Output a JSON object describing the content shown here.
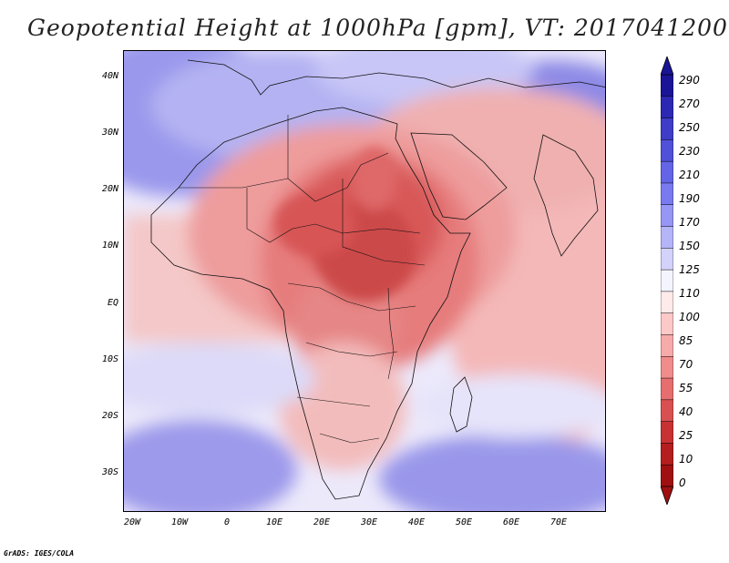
{
  "title": "Geopotential Height at 1000hPa [gpm], VT: 2017041200",
  "credit": "GrADS: IGES/COLA",
  "map": {
    "variable": "Geopotential Height",
    "level": "1000hPa",
    "units": "gpm",
    "valid_time": "2017041200",
    "region": "Africa, Arabian Peninsula and Indian Ocean",
    "lat_ticks": [
      "40N",
      "30N",
      "20N",
      "10N",
      "EQ",
      "10S",
      "20S",
      "30S"
    ],
    "lon_ticks": [
      "20W",
      "10W",
      "0",
      "10E",
      "20E",
      "30E",
      "40E",
      "50E",
      "60E",
      "70E"
    ]
  },
  "colorbar": {
    "labels": [
      "290",
      "270",
      "250",
      "230",
      "210",
      "190",
      "170",
      "150",
      "125",
      "110",
      "100",
      "85",
      "70",
      "55",
      "40",
      "25",
      "10",
      "0"
    ],
    "colors": [
      "#1a1496",
      "#2c28b4",
      "#3e3cc8",
      "#5050d8",
      "#6464e6",
      "#7a7af0",
      "#9696f5",
      "#b4b4f8",
      "#d2d2fb",
      "#f4f4ff",
      "#ffeaea",
      "#fcc8c8",
      "#f7aaaa",
      "#f08c8c",
      "#e66e6e",
      "#d85050",
      "#c83232",
      "#b41e1e",
      "#a01010"
    ]
  }
}
